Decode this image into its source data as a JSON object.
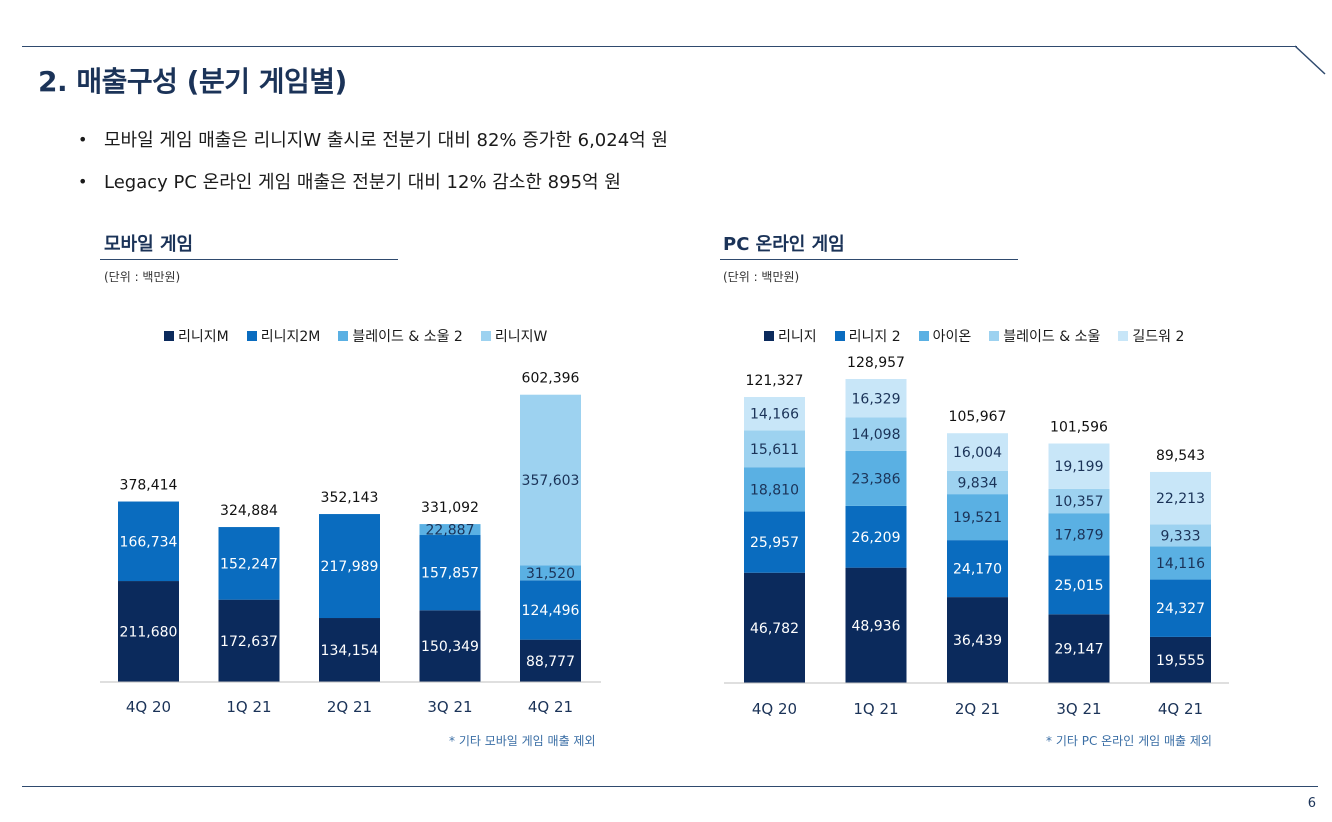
{
  "page": {
    "title": "2. 매출구성 (분기 게임별)",
    "bullets": [
      "모바일 게임 매출은 리니지W 출시로 전분기 대비 82% 증가한 6,024억 원",
      "Legacy PC 온라인 게임 매출은 전분기 대비 12% 감소한 895억 원"
    ],
    "page_number": "6",
    "bullet_symbol": "•"
  },
  "mobile": {
    "section_title": "모바일 게임",
    "unit": "(단위 : 백만원)",
    "footnote": "* 기타 모바일 게임 매출 제외"
  },
  "pc": {
    "section_title": "PC 온라인 게임",
    "unit": "(단위 : 백만원)",
    "footnote": "* 기타 PC 온라인 게임 매출 제외"
  },
  "chart_data": [
    {
      "type": "bar",
      "stacked": true,
      "title": "모바일 게임",
      "categories": [
        "4Q 20",
        "1Q 21",
        "2Q 21",
        "3Q 21",
        "4Q 21"
      ],
      "series": [
        {
          "name": "리니지M",
          "color": "#0b2a5c",
          "values": [
            211680,
            172637,
            134154,
            150349,
            88777
          ],
          "labels": [
            "211,680",
            "172,637",
            "134,154",
            "150,349",
            "88,777"
          ]
        },
        {
          "name": "리니지2M",
          "color": "#0a6cbf",
          "values": [
            166734,
            152247,
            217989,
            157857,
            124496
          ],
          "labels": [
            "166,734",
            "152,247",
            "217,989",
            "157,857",
            "124,496"
          ]
        },
        {
          "name": "블레이드 & 소울 2",
          "color": "#5ab0e3",
          "values": [
            0,
            0,
            0,
            22887,
            31520
          ],
          "labels": [
            "",
            "",
            "",
            "22,887",
            "31,520"
          ]
        },
        {
          "name": "리니지W",
          "color": "#9dd2f0",
          "values": [
            0,
            0,
            0,
            0,
            357603
          ],
          "labels": [
            "",
            "",
            "",
            "",
            "357,603"
          ]
        }
      ],
      "totals": [
        378414,
        324884,
        352143,
        331092,
        602396
      ],
      "total_labels": [
        "378,414",
        "324,884",
        "352,143",
        "331,092",
        "602,396"
      ],
      "ylim": [
        0,
        650000
      ]
    },
    {
      "type": "bar",
      "stacked": true,
      "title": "PC 온라인 게임",
      "categories": [
        "4Q 20",
        "1Q 21",
        "2Q 21",
        "3Q 21",
        "4Q 21"
      ],
      "series": [
        {
          "name": "리니지",
          "color": "#0b2a5c",
          "values": [
            46782,
            48936,
            36439,
            29147,
            19555
          ],
          "labels": [
            "46,782",
            "48,936",
            "36,439",
            "29,147",
            "19,555"
          ]
        },
        {
          "name": "리니지 2",
          "color": "#0a6cbf",
          "values": [
            25957,
            26209,
            24170,
            25015,
            24327
          ],
          "labels": [
            "25,957",
            "26,209",
            "24,170",
            "25,015",
            "24,327"
          ]
        },
        {
          "name": "아이온",
          "color": "#5ab0e3",
          "values": [
            18810,
            23386,
            19521,
            17879,
            14116
          ],
          "labels": [
            "18,810",
            "23,386",
            "19,521",
            "17,879",
            "14,116"
          ]
        },
        {
          "name": "블레이드 & 소울",
          "color": "#9dd2f0",
          "values": [
            15611,
            14098,
            9834,
            10357,
            9333
          ],
          "labels": [
            "15,611",
            "14,098",
            "9,834",
            "10,357",
            "9,333"
          ]
        },
        {
          "name": "길드워 2",
          "color": "#c8e6f8",
          "values": [
            14166,
            16329,
            16004,
            19199,
            22213
          ],
          "labels": [
            "14,166",
            "16,329",
            "16,004",
            "19,199",
            "22,213"
          ]
        }
      ],
      "totals": [
        121327,
        128957,
        105967,
        101596,
        89543
      ],
      "total_labels": [
        "121,327",
        "128,957",
        "105,967",
        "101,596",
        "89,543"
      ],
      "ylim": [
        0,
        140000
      ]
    }
  ]
}
